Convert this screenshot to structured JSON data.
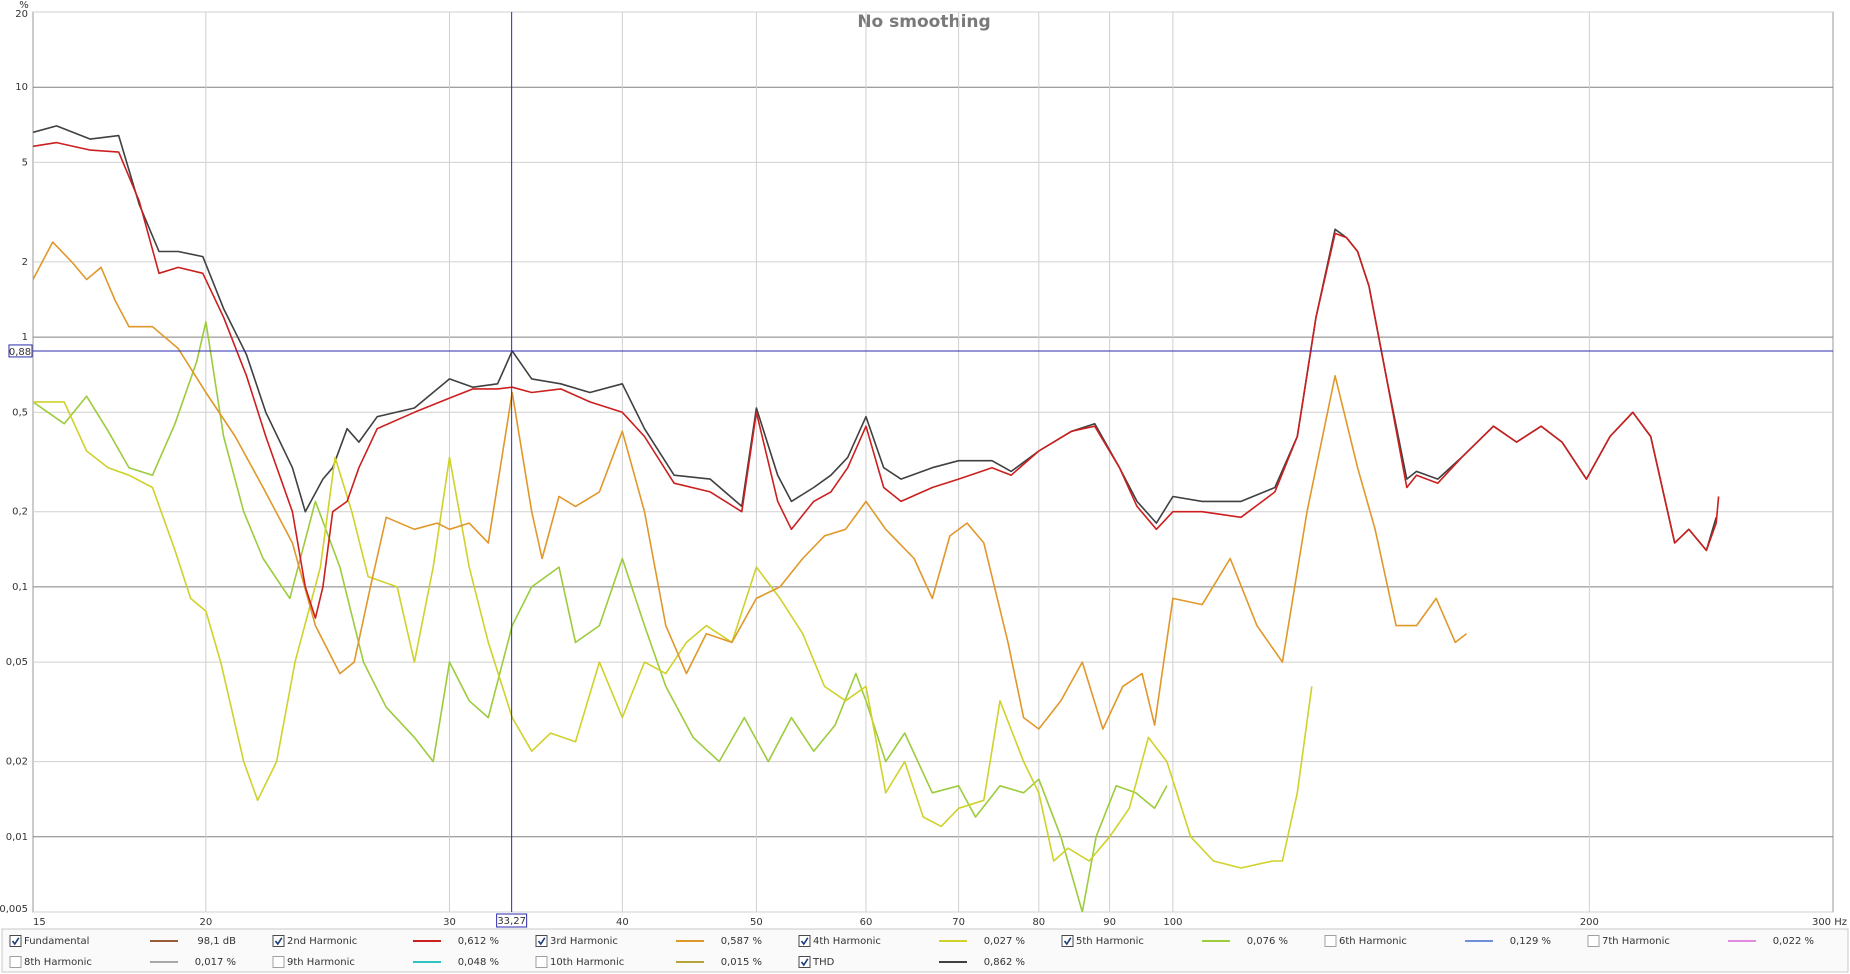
{
  "chart_data": {
    "type": "line",
    "title": "No smoothing",
    "y_label": "%",
    "log_x": true,
    "log_y": true,
    "grid": true,
    "xlim": [
      15,
      300
    ],
    "ylim": [
      0.005,
      20
    ],
    "xticks": [
      15,
      20,
      30,
      40,
      50,
      60,
      70,
      80,
      90,
      100,
      200,
      {
        "value": 300,
        "label": "300 Hz"
      }
    ],
    "yticks": [
      {
        "value": 0.005,
        "label": "0,005"
      },
      {
        "value": 0.01,
        "label": "0,01"
      },
      {
        "value": 0.02,
        "label": "0,02"
      },
      {
        "value": 0.05,
        "label": "0,05"
      },
      {
        "value": 0.1,
        "label": "0,1"
      },
      {
        "value": 0.2,
        "label": "0,2"
      },
      {
        "value": 0.5,
        "label": "0,5"
      },
      1,
      2,
      5,
      10,
      20
    ],
    "cursor": {
      "x": {
        "value": 33.27,
        "label": "33,27"
      },
      "y": {
        "value": 0.88,
        "label": "0,88"
      },
      "color": "#2b2bb0"
    },
    "series": [
      {
        "name": "Fundamental",
        "color": "#9a5b3a",
        "checked": true,
        "readout": "98,1 dB"
      },
      {
        "name": "2nd Harmonic",
        "color": "#cc1f1f",
        "checked": true,
        "readout": "0,612 %",
        "x": [
          15,
          15.6,
          16.5,
          17.3,
          17.9,
          18.5,
          19.1,
          19.9,
          20.6,
          21.4,
          22.1,
          23.1,
          23.6,
          24,
          24.3,
          24.7,
          25.3,
          25.8,
          26.6,
          28.3,
          30,
          31.2,
          32.5,
          33.3,
          34.4,
          36.1,
          37.9,
          40,
          41.5,
          43.6,
          46.3,
          48.8,
          50,
          51.8,
          53,
          55,
          56.6,
          58.2,
          60,
          61.8,
          63.6,
          67,
          70,
          74,
          76.4,
          80,
          84.5,
          87.8,
          91.5,
          94.2,
          97.3,
          100,
          105,
          112,
          118.5,
          123,
          126.9,
          131,
          133.5,
          136,
          138.6,
          142.6,
          147.6,
          150,
          155.4,
          161.7,
          170.5,
          177.2,
          184.6,
          191.1,
          199,
          207,
          215,
          221.5,
          230.5,
          236,
          243,
          247,
          248
        ],
        "values": [
          5.8,
          6.0,
          5.6,
          5.5,
          3.5,
          1.8,
          1.9,
          1.8,
          1.2,
          0.7,
          0.4,
          0.2,
          0.1,
          0.075,
          0.1,
          0.2,
          0.22,
          0.3,
          0.43,
          0.5,
          0.57,
          0.62,
          0.62,
          0.63,
          0.6,
          0.62,
          0.55,
          0.5,
          0.4,
          0.26,
          0.24,
          0.2,
          0.5,
          0.22,
          0.17,
          0.22,
          0.24,
          0.3,
          0.44,
          0.25,
          0.22,
          0.25,
          0.27,
          0.3,
          0.28,
          0.35,
          0.42,
          0.44,
          0.3,
          0.21,
          0.17,
          0.2,
          0.2,
          0.19,
          0.24,
          0.4,
          1.2,
          2.6,
          2.5,
          2.2,
          1.6,
          0.7,
          0.25,
          0.28,
          0.26,
          0.33,
          0.44,
          0.38,
          0.44,
          0.38,
          0.27,
          0.4,
          0.5,
          0.4,
          0.15,
          0.17,
          0.14,
          0.18,
          0.23
        ]
      },
      {
        "name": "3rd Harmonic",
        "color": "#e0982a",
        "checked": true,
        "readout": "0,587 %",
        "x": [
          15,
          15.5,
          16,
          16.4,
          16.8,
          17.2,
          17.6,
          18.3,
          19.1,
          20,
          21,
          22,
          23.1,
          24,
          25,
          25.6,
          26.3,
          27,
          28.3,
          29.4,
          30,
          31,
          32,
          33.3,
          34.4,
          35,
          36,
          37,
          38.5,
          40,
          41.5,
          43,
          44.5,
          46,
          48,
          50,
          52,
          54,
          56,
          58,
          60,
          62,
          65,
          67,
          69,
          71,
          73,
          76,
          78,
          80,
          83,
          86,
          89,
          92,
          95,
          97,
          100,
          105,
          110,
          115,
          120,
          125,
          131,
          136,
          140,
          145,
          150,
          155,
          160,
          163
        ],
        "values": [
          1.7,
          2.4,
          2.0,
          1.7,
          1.9,
          1.4,
          1.1,
          1.1,
          0.9,
          0.6,
          0.4,
          0.25,
          0.15,
          0.07,
          0.045,
          0.05,
          0.1,
          0.19,
          0.17,
          0.18,
          0.17,
          0.18,
          0.15,
          0.6,
          0.2,
          0.13,
          0.23,
          0.21,
          0.24,
          0.42,
          0.2,
          0.07,
          0.045,
          0.065,
          0.06,
          0.09,
          0.1,
          0.13,
          0.16,
          0.17,
          0.22,
          0.17,
          0.13,
          0.09,
          0.16,
          0.18,
          0.15,
          0.06,
          0.03,
          0.027,
          0.035,
          0.05,
          0.027,
          0.04,
          0.045,
          0.028,
          0.09,
          0.085,
          0.13,
          0.07,
          0.05,
          0.2,
          0.7,
          0.3,
          0.17,
          0.07,
          0.07,
          0.09,
          0.06,
          0.065
        ]
      },
      {
        "name": "4th Harmonic",
        "color": "#cfd22a",
        "checked": true,
        "readout": "0,027 %",
        "x": [
          15,
          15.8,
          16.4,
          17,
          17.6,
          18.3,
          19,
          19.5,
          20,
          20.5,
          21.3,
          21.8,
          22.5,
          23.2,
          24.2,
          24.8,
          25.5,
          26.2,
          27.5,
          28.3,
          29.2,
          30,
          31,
          32,
          33.3,
          34.4,
          35.5,
          37,
          38.5,
          40,
          41.5,
          43,
          44.5,
          46,
          48,
          50,
          52,
          54,
          56,
          58,
          60,
          62,
          64,
          66,
          68,
          70,
          73,
          75,
          78,
          80,
          82,
          84,
          87,
          90,
          93,
          96,
          99,
          103,
          107,
          112,
          118,
          120,
          123,
          126
        ],
        "values": [
          0.55,
          0.55,
          0.35,
          0.3,
          0.28,
          0.25,
          0.14,
          0.09,
          0.08,
          0.05,
          0.02,
          0.014,
          0.02,
          0.05,
          0.12,
          0.33,
          0.2,
          0.11,
          0.1,
          0.05,
          0.12,
          0.33,
          0.12,
          0.06,
          0.03,
          0.022,
          0.026,
          0.024,
          0.05,
          0.03,
          0.05,
          0.045,
          0.06,
          0.07,
          0.06,
          0.12,
          0.09,
          0.065,
          0.04,
          0.035,
          0.04,
          0.015,
          0.02,
          0.012,
          0.011,
          0.013,
          0.014,
          0.035,
          0.02,
          0.015,
          0.008,
          0.009,
          0.008,
          0.01,
          0.013,
          0.025,
          0.02,
          0.01,
          0.008,
          0.0075,
          0.008,
          0.008,
          0.015,
          0.04
        ]
      },
      {
        "name": "5th Harmonic",
        "color": "#9ccc3c",
        "checked": true,
        "readout": "0,076 %",
        "x": [
          15,
          15.8,
          16.4,
          17,
          17.6,
          18.3,
          19,
          19.7,
          20,
          20.6,
          21.3,
          22,
          23,
          24,
          25,
          26,
          27,
          28.3,
          29.2,
          30,
          31,
          32,
          33.3,
          34.4,
          36,
          37,
          38.5,
          40,
          41.5,
          43,
          45,
          47,
          49,
          51,
          53,
          55,
          57,
          59,
          60,
          62,
          64,
          67,
          70,
          72,
          75,
          78,
          80,
          83,
          86,
          88,
          91,
          94,
          97,
          99
        ],
        "values": [
          0.55,
          0.45,
          0.58,
          0.42,
          0.3,
          0.28,
          0.45,
          0.8,
          1.15,
          0.4,
          0.2,
          0.13,
          0.09,
          0.22,
          0.12,
          0.05,
          0.033,
          0.025,
          0.02,
          0.05,
          0.035,
          0.03,
          0.07,
          0.1,
          0.12,
          0.06,
          0.07,
          0.13,
          0.07,
          0.04,
          0.025,
          0.02,
          0.03,
          0.02,
          0.03,
          0.022,
          0.028,
          0.045,
          0.035,
          0.02,
          0.026,
          0.015,
          0.016,
          0.012,
          0.016,
          0.015,
          0.017,
          0.01,
          0.005,
          0.01,
          0.016,
          0.015,
          0.013,
          0.016
        ]
      },
      {
        "name": "6th Harmonic",
        "color": "#6f8fd8",
        "checked": false,
        "readout": "0,129 %"
      },
      {
        "name": "7th Harmonic",
        "color": "#e08be0",
        "checked": false,
        "readout": "0,022 %"
      },
      {
        "name": "8th Harmonic",
        "color": "#a8a8a8",
        "checked": false,
        "readout": "0,017 %"
      },
      {
        "name": "9th Harmonic",
        "color": "#2ec4c4",
        "checked": false,
        "readout": "0,048 %"
      },
      {
        "name": "10th Harmonic",
        "color": "#b5a43a",
        "checked": false,
        "readout": "0,015 %"
      },
      {
        "name": "THD",
        "color": "#404040",
        "checked": true,
        "readout": "0,862 %",
        "x": [
          15,
          15.6,
          16.5,
          17.3,
          17.9,
          18.5,
          19.1,
          19.9,
          20.6,
          21.4,
          22.1,
          23.1,
          23.6,
          24.3,
          24.7,
          25.3,
          25.8,
          26.6,
          28.3,
          30,
          31.2,
          32.5,
          33.3,
          34.4,
          36.1,
          37.9,
          40,
          41.5,
          43.6,
          46.3,
          48.8,
          50,
          51.8,
          53,
          55,
          56.6,
          58.2,
          60,
          61.8,
          63.6,
          67,
          70,
          74,
          76.4,
          80,
          84.5,
          87.8,
          91.5,
          94.2,
          97.3,
          100,
          105,
          112,
          118.5,
          123,
          126.9,
          131,
          133.5,
          136,
          138.6,
          142.6,
          147.6,
          150,
          155.4,
          161.7,
          170.5,
          177.2,
          184.6,
          191.1,
          199,
          207,
          215,
          221.5,
          230.5,
          236,
          243,
          247
        ],
        "values": [
          6.6,
          7.0,
          6.2,
          6.4,
          3.4,
          2.2,
          2.2,
          2.1,
          1.3,
          0.85,
          0.5,
          0.3,
          0.2,
          0.27,
          0.3,
          0.43,
          0.38,
          0.48,
          0.52,
          0.68,
          0.63,
          0.65,
          0.88,
          0.68,
          0.65,
          0.6,
          0.65,
          0.43,
          0.28,
          0.27,
          0.21,
          0.52,
          0.28,
          0.22,
          0.25,
          0.28,
          0.33,
          0.48,
          0.3,
          0.27,
          0.3,
          0.32,
          0.32,
          0.29,
          0.35,
          0.42,
          0.45,
          0.3,
          0.22,
          0.18,
          0.23,
          0.22,
          0.22,
          0.25,
          0.4,
          1.2,
          2.7,
          2.5,
          2.2,
          1.6,
          0.7,
          0.27,
          0.29,
          0.27,
          0.33,
          0.44,
          0.38,
          0.44,
          0.38,
          0.27,
          0.4,
          0.5,
          0.4,
          0.15,
          0.17,
          0.14,
          0.19
        ]
      }
    ]
  }
}
